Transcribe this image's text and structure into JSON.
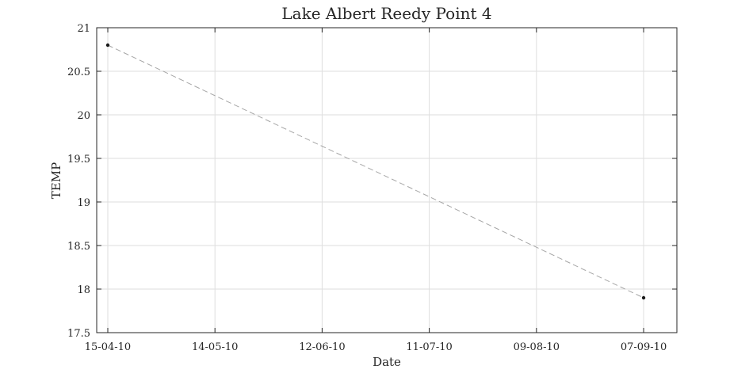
{
  "chart_data": {
    "type": "line",
    "title": "Lake Albert Reedy Point 4",
    "xlabel": "Date",
    "ylabel": "TEMP",
    "x_scale": "date",
    "xlim": [
      "2010-04-12",
      "2010-09-16"
    ],
    "ylim": [
      17.5,
      21
    ],
    "xticks": [
      {
        "date": "2010-04-15",
        "label": "15-04-10"
      },
      {
        "date": "2010-05-14",
        "label": "14-05-10"
      },
      {
        "date": "2010-06-12",
        "label": "12-06-10"
      },
      {
        "date": "2010-07-11",
        "label": "11-07-10"
      },
      {
        "date": "2010-08-09",
        "label": "09-08-10"
      },
      {
        "date": "2010-09-07",
        "label": "07-09-10"
      }
    ],
    "yticks": [
      17.5,
      18,
      18.5,
      19,
      19.5,
      20,
      20.5,
      21
    ],
    "grid": true,
    "legend": "none",
    "series": [
      {
        "line_color": "#a6a6a6",
        "marker_color": "#1a1a1a",
        "points": [
          {
            "x": "2010-04-15",
            "y": 20.8
          },
          {
            "x": "2010-09-07",
            "y": 17.9
          }
        ]
      }
    ]
  }
}
